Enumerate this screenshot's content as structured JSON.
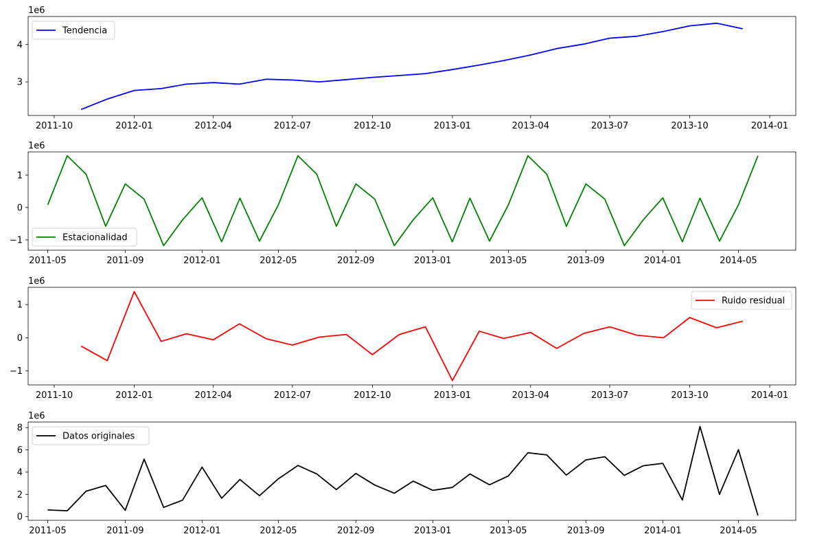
{
  "chart_data": [
    {
      "type": "line",
      "scale_label": "1e6",
      "legend": {
        "label": "Tendencia",
        "placement": "upper-left"
      },
      "color": "#0000ff",
      "x_ticks": [
        "2011-10",
        "2012-01",
        "2012-04",
        "2012-07",
        "2012-10",
        "2013-01",
        "2013-04",
        "2013-07",
        "2013-10",
        "2014-01"
      ],
      "y_ticks": [
        "3",
        "4"
      ],
      "xlim": [
        "2011-09-01",
        "2014-01-31"
      ],
      "ylim": [
        2.1,
        4.75
      ],
      "series": [
        {
          "x": [
            "2011-11-01",
            "2011-12-01",
            "2012-01-01",
            "2012-02-01",
            "2012-03-01",
            "2012-04-01",
            "2012-05-01",
            "2012-06-01",
            "2012-07-01",
            "2012-08-01",
            "2012-09-01",
            "2012-10-01",
            "2012-11-01",
            "2012-12-01",
            "2013-01-01",
            "2013-02-01",
            "2013-03-01",
            "2013-04-01",
            "2013-05-01",
            "2013-06-01",
            "2013-07-01",
            "2013-08-01",
            "2013-09-01",
            "2013-10-01",
            "2013-11-01",
            "2013-12-01"
          ],
          "y": [
            2.26,
            2.54,
            2.77,
            2.82,
            2.94,
            2.98,
            2.94,
            3.07,
            3.05,
            3.0,
            3.06,
            3.12,
            3.17,
            3.22,
            3.33,
            3.45,
            3.57,
            3.72,
            3.89,
            4.01,
            4.17,
            4.22,
            4.35,
            4.5,
            4.57,
            4.42
          ]
        }
      ]
    },
    {
      "type": "line",
      "scale_label": "1e6",
      "legend": {
        "label": "Estacionalidad",
        "placement": "lower-left"
      },
      "color": "#008000",
      "x_ticks": [
        "2011-05",
        "2011-09",
        "2012-01",
        "2012-05",
        "2012-09",
        "2013-01",
        "2013-05",
        "2013-09",
        "2014-01",
        "2014-05"
      ],
      "y_ticks": [
        "−1",
        "0",
        "1"
      ],
      "xlim": [
        "2011-03-31",
        "2014-07-31"
      ],
      "ylim": [
        -1.32,
        1.72
      ],
      "series": [
        {
          "x": [
            "2011-05-01",
            "2011-06-01",
            "2011-07-01",
            "2011-08-01",
            "2011-09-01",
            "2011-10-01",
            "2011-11-01",
            "2011-12-01",
            "2012-01-01",
            "2012-02-01",
            "2012-03-01",
            "2012-04-01",
            "2012-05-01",
            "2012-06-01",
            "2012-07-01",
            "2012-08-01",
            "2012-09-01",
            "2012-10-01",
            "2012-11-01",
            "2012-12-01",
            "2013-01-01",
            "2013-02-01",
            "2013-03-01",
            "2013-04-01",
            "2013-05-01",
            "2013-06-01",
            "2013-07-01",
            "2013-08-01",
            "2013-09-01",
            "2013-10-01",
            "2013-11-01",
            "2013-12-01",
            "2014-01-01",
            "2014-02-01",
            "2014-03-01",
            "2014-04-01",
            "2014-05-01",
            "2014-06-01"
          ],
          "y": [
            0.08,
            1.6,
            1.03,
            -0.58,
            0.73,
            0.26,
            -1.18,
            -0.38,
            0.3,
            -1.06,
            0.29,
            -1.04,
            0.08,
            1.6,
            1.03,
            -0.58,
            0.73,
            0.26,
            -1.18,
            -0.38,
            0.3,
            -1.06,
            0.29,
            -1.04,
            0.08,
            1.6,
            1.03,
            -0.58,
            0.73,
            0.26,
            -1.18,
            -0.38,
            0.3,
            -1.06,
            0.29,
            -1.04,
            0.08,
            1.6
          ]
        }
      ]
    },
    {
      "type": "line",
      "scale_label": "1e6",
      "legend": {
        "label": "Ruido residual",
        "placement": "upper-right"
      },
      "color": "#ff0000",
      "x_ticks": [
        "2011-10",
        "2012-01",
        "2012-04",
        "2012-07",
        "2012-10",
        "2013-01",
        "2013-04",
        "2013-07",
        "2013-10",
        "2014-01"
      ],
      "y_ticks": [
        "−1",
        "0",
        "1"
      ],
      "xlim": [
        "2011-09-01",
        "2014-01-31"
      ],
      "ylim": [
        -1.42,
        1.52
      ],
      "series": [
        {
          "x": [
            "2011-11-01",
            "2011-12-01",
            "2012-01-01",
            "2012-02-01",
            "2012-03-01",
            "2012-04-01",
            "2012-05-01",
            "2012-06-01",
            "2012-07-01",
            "2012-08-01",
            "2012-09-01",
            "2012-10-01",
            "2012-11-01",
            "2012-12-01",
            "2013-01-01",
            "2013-02-01",
            "2013-03-01",
            "2013-04-01",
            "2013-05-01",
            "2013-06-01",
            "2013-07-01",
            "2013-08-01",
            "2013-09-01",
            "2013-10-01",
            "2013-11-01",
            "2013-12-01"
          ],
          "y": [
            -0.25,
            -0.69,
            1.39,
            -0.11,
            0.12,
            -0.06,
            0.42,
            -0.03,
            -0.22,
            0.02,
            0.1,
            -0.51,
            0.1,
            0.33,
            -1.29,
            0.2,
            -0.02,
            0.16,
            -0.32,
            0.13,
            0.33,
            0.08,
            0.0,
            0.61,
            0.3,
            0.5
          ]
        }
      ]
    },
    {
      "type": "line",
      "scale_label": "1e6",
      "legend": {
        "label": "Datos originales",
        "placement": "upper-left"
      },
      "color": "#000000",
      "x_ticks": [
        "2011-05",
        "2011-09",
        "2012-01",
        "2012-05",
        "2012-09",
        "2013-01",
        "2013-05",
        "2013-09",
        "2014-01",
        "2014-05"
      ],
      "y_ticks": [
        "0",
        "2",
        "4",
        "6",
        "8"
      ],
      "xlim": [
        "2011-03-31",
        "2014-07-31"
      ],
      "ylim": [
        -0.33,
        8.5
      ],
      "series": [
        {
          "x": [
            "2011-05-01",
            "2011-06-01",
            "2011-07-01",
            "2011-08-01",
            "2011-09-01",
            "2011-10-01",
            "2011-11-01",
            "2011-12-01",
            "2012-01-01",
            "2012-02-01",
            "2012-03-01",
            "2012-04-01",
            "2012-05-01",
            "2012-06-01",
            "2012-07-01",
            "2012-08-01",
            "2012-09-01",
            "2012-10-01",
            "2012-11-01",
            "2012-12-01",
            "2013-01-01",
            "2013-02-01",
            "2013-03-01",
            "2013-04-01",
            "2013-05-01",
            "2013-06-01",
            "2013-07-01",
            "2013-08-01",
            "2013-09-01",
            "2013-10-01",
            "2013-11-01",
            "2013-12-01",
            "2014-01-01",
            "2014-02-01",
            "2014-03-01",
            "2014-04-01",
            "2014-05-01",
            "2014-06-01"
          ],
          "y": [
            0.6,
            0.53,
            2.29,
            2.8,
            0.57,
            5.16,
            0.83,
            1.48,
            4.45,
            1.65,
            3.34,
            1.88,
            3.4,
            4.6,
            3.83,
            2.43,
            3.88,
            2.84,
            2.1,
            3.19,
            2.36,
            2.62,
            3.83,
            2.86,
            3.66,
            5.74,
            5.54,
            3.73,
            5.1,
            5.38,
            3.71,
            4.57,
            4.79,
            1.5,
            8.1,
            2.0,
            6.02,
            0.1
          ]
        }
      ]
    }
  ]
}
